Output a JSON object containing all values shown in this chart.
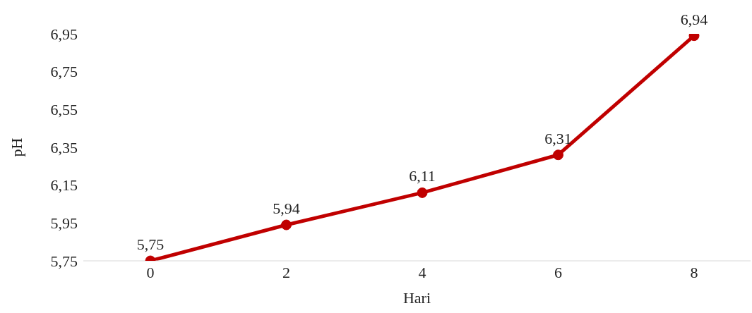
{
  "chart_data": {
    "type": "line",
    "xlabel": "Hari",
    "ylabel": "pH",
    "categories": [
      "0",
      "2",
      "4",
      "6",
      "8"
    ],
    "series": [
      {
        "color": "#c00000",
        "values": [
          5.75,
          5.94,
          6.11,
          6.31,
          6.94
        ],
        "value_labels": [
          "5,75",
          "5,94",
          "6,11",
          "6,31",
          "6,94"
        ]
      }
    ],
    "ylim": [
      5.75,
      6.95
    ],
    "yticks": [
      {
        "value": 5.75,
        "label": "5,75"
      },
      {
        "value": 5.95,
        "label": "5,95"
      },
      {
        "value": 6.15,
        "label": "6,15"
      },
      {
        "value": 6.35,
        "label": "6,35"
      },
      {
        "value": 6.55,
        "label": "6,55"
      },
      {
        "value": 6.75,
        "label": "6,75"
      },
      {
        "value": 6.95,
        "label": "6,95"
      }
    ],
    "grid": false,
    "legend": false,
    "marker": "circle",
    "line_style": "solid"
  }
}
